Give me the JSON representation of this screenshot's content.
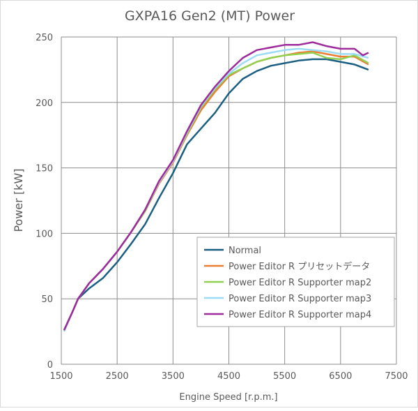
{
  "chart_data": {
    "type": "line",
    "title": "GXPA16 Gen2 (MT) Power",
    "xlabel": "Engine Speed [r.p.m.]",
    "ylabel": "Power [kW]",
    "xlim": [
      1500,
      7500
    ],
    "ylim": [
      0,
      250
    ],
    "xticks": [
      1500,
      2500,
      3500,
      4500,
      5500,
      6500,
      7500
    ],
    "yticks": [
      0,
      50,
      100,
      150,
      200,
      250
    ],
    "grid": true,
    "legend_position": "bottom-right",
    "series": [
      {
        "name": "Normal",
        "color": "#1a5f82",
        "x": [
          1550,
          1700,
          1800,
          2000,
          2250,
          2500,
          2750,
          3000,
          3250,
          3500,
          3750,
          4000,
          4250,
          4500,
          4750,
          5000,
          5250,
          5500,
          5750,
          6000,
          6250,
          6500,
          6750,
          7000
        ],
        "y": [
          26,
          40,
          50,
          58,
          66,
          78,
          92,
          107,
          127,
          146,
          168,
          180,
          192,
          207,
          218,
          224,
          228,
          230,
          232,
          233,
          233,
          231,
          229,
          225
        ]
      },
      {
        "name": "Power Editor R プリセットデータ",
        "color": "#ed7d31",
        "x": [
          1550,
          1700,
          1800,
          2000,
          2250,
          2500,
          2750,
          3000,
          3250,
          3500,
          3750,
          4000,
          4250,
          4500,
          4750,
          5000,
          5250,
          5500,
          5750,
          6000,
          6250,
          6500,
          6750,
          7000
        ],
        "y": [
          26,
          40,
          50,
          62,
          73,
          86,
          101,
          117,
          138,
          154,
          175,
          194,
          208,
          220,
          226,
          231,
          234,
          236,
          238,
          239,
          237,
          235,
          235,
          229
        ]
      },
      {
        "name": "Power Editor R Supporter map2",
        "color": "#92d050",
        "x": [
          1550,
          1700,
          1800,
          2000,
          2250,
          2500,
          2750,
          3000,
          3250,
          3500,
          3750,
          4000,
          4250,
          4500,
          4750,
          5000,
          5250,
          5500,
          5750,
          6000,
          6250,
          6500,
          6750,
          7000
        ],
        "y": [
          26,
          40,
          50,
          62,
          73,
          86,
          101,
          117,
          139,
          155,
          176,
          196,
          210,
          221,
          226,
          231,
          234,
          236,
          237,
          238,
          234,
          233,
          236,
          230
        ]
      },
      {
        "name": "Power Editor R Supporter map3",
        "color": "#9bdcf5",
        "x": [
          1550,
          1700,
          1800,
          2000,
          2250,
          2500,
          2750,
          3000,
          3250,
          3500,
          3750,
          4000,
          4250,
          4500,
          4750,
          5000,
          5250,
          5500,
          5750,
          6000,
          6250,
          6500,
          6750,
          7000
        ],
        "y": [
          25,
          40,
          50,
          62,
          73,
          86,
          101,
          118,
          139,
          155,
          177,
          197,
          211,
          222,
          230,
          236,
          238,
          240,
          241,
          240,
          239,
          237,
          237,
          234
        ]
      },
      {
        "name": "Power Editor R Supporter map4",
        "color": "#9e2a9c",
        "x": [
          1550,
          1700,
          1800,
          2000,
          2250,
          2500,
          2750,
          3000,
          3250,
          3500,
          3750,
          4000,
          4250,
          4500,
          4750,
          5000,
          5250,
          5500,
          5750,
          6000,
          6250,
          6500,
          6750,
          6900,
          7000
        ],
        "y": [
          26,
          40,
          50,
          62,
          73,
          86,
          101,
          118,
          140,
          156,
          178,
          198,
          212,
          224,
          234,
          240,
          242,
          244,
          244,
          246,
          243,
          241,
          241,
          236,
          238
        ]
      }
    ]
  }
}
